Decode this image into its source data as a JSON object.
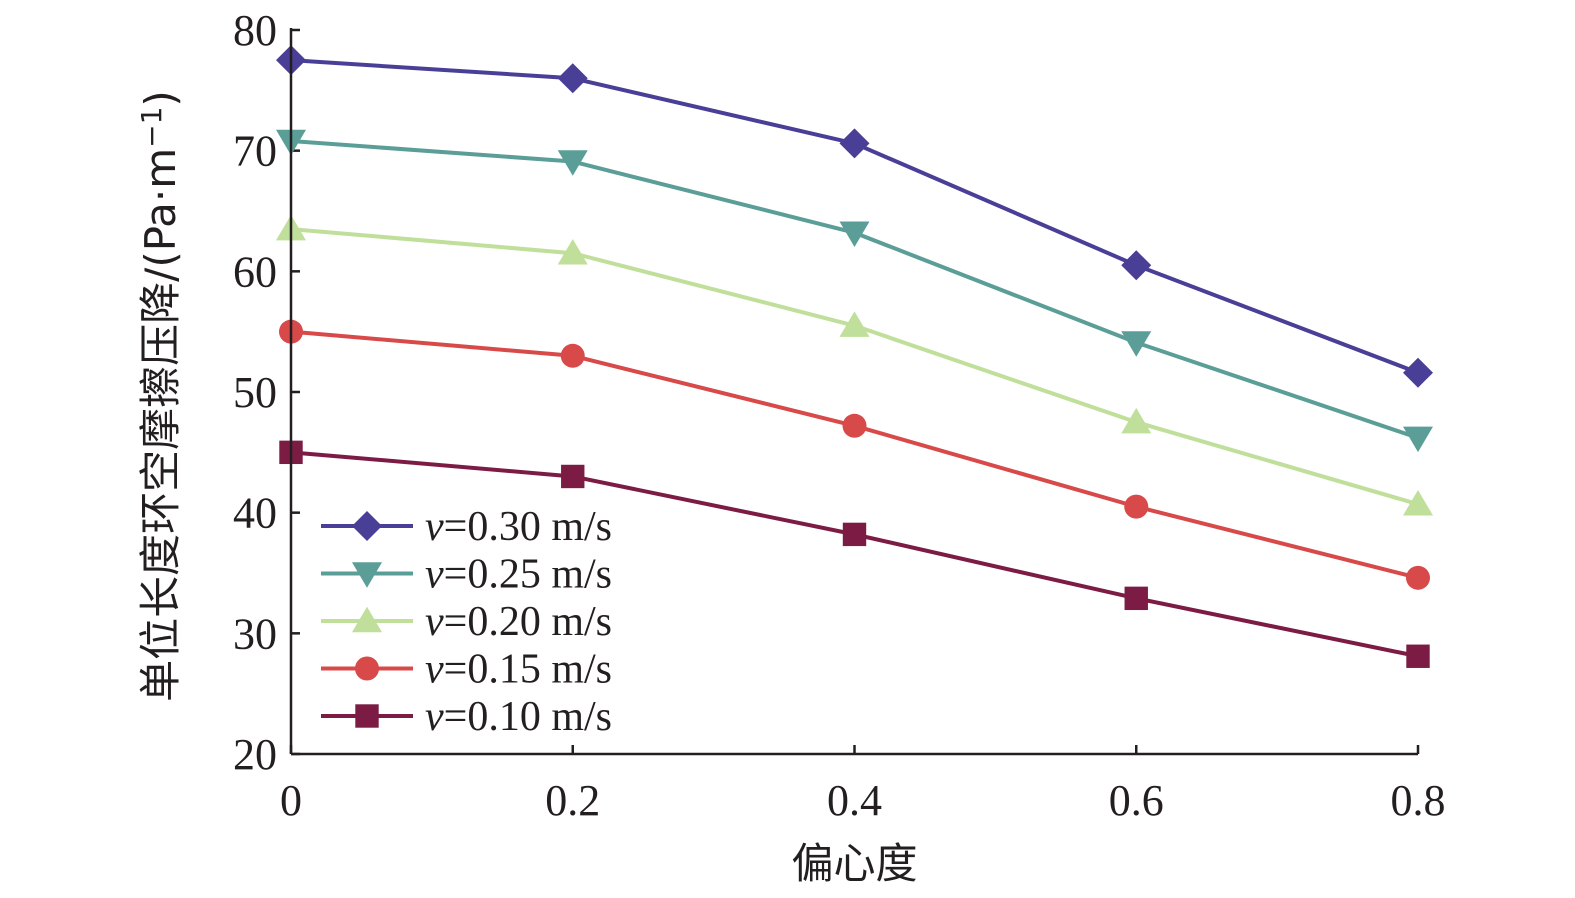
{
  "chart_data": {
    "type": "line",
    "xlabel": "偏心度",
    "ylabel": "单位长度环空摩擦压降/(Pa·m",
    "ylabel_sup": "−1",
    "ylabel_close": ")",
    "x": [
      0,
      0.2,
      0.4,
      0.6,
      0.8
    ],
    "x_tick_labels": [
      "0",
      "0.2",
      "0.4",
      "0.6",
      "0.8"
    ],
    "xlim": [
      0,
      0.8
    ],
    "ylim": [
      20,
      80
    ],
    "y_ticks": [
      20,
      30,
      40,
      50,
      60,
      70,
      80
    ],
    "y_tick_labels": [
      "20",
      "30",
      "40",
      "50",
      "60",
      "70",
      "80"
    ],
    "grid": false,
    "legend_position": "bottom-left",
    "series": [
      {
        "name": "v=0.30 m/s",
        "var": "v",
        "rest": "=0.30 m/s",
        "color": "#4a3f97",
        "marker": "diamond",
        "values": [
          77.5,
          76.0,
          70.6,
          60.5,
          51.6
        ]
      },
      {
        "name": "v=0.25 m/s",
        "var": "v",
        "rest": "=0.25 m/s",
        "color": "#5b9e98",
        "marker": "triangle-down",
        "values": [
          70.8,
          69.1,
          63.2,
          54.1,
          46.2
        ]
      },
      {
        "name": "v=0.20 m/s",
        "var": "v",
        "rest": "=0.20 m/s",
        "color": "#bfdf9a",
        "marker": "triangle-up",
        "values": [
          63.5,
          61.5,
          55.5,
          47.5,
          40.7
        ]
      },
      {
        "name": "v=0.15 m/s",
        "var": "v",
        "rest": "=0.15 m/s",
        "color": "#d8494a",
        "marker": "circle",
        "values": [
          55.0,
          53.0,
          47.2,
          40.5,
          34.6
        ]
      },
      {
        "name": "v=0.10 m/s",
        "var": "v",
        "rest": "=0.10 m/s",
        "color": "#7c1c45",
        "marker": "square",
        "values": [
          45.0,
          43.0,
          38.2,
          32.9,
          28.1
        ]
      }
    ]
  }
}
